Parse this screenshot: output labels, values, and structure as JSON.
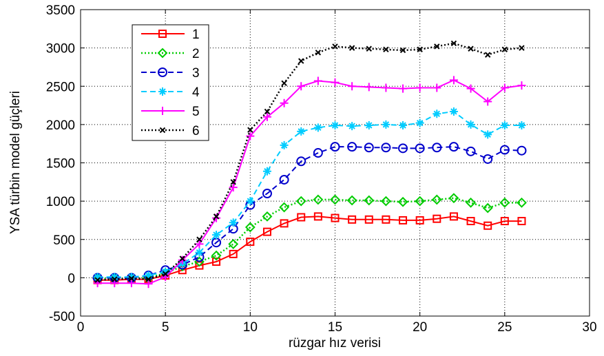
{
  "chart_data": {
    "type": "line",
    "title": "",
    "xlabel": "rüzgar hız verisi",
    "ylabel": "YSA türbin model güçleri",
    "xlim": [
      0,
      30
    ],
    "ylim": [
      -500,
      3500
    ],
    "xticks": [
      0,
      5,
      10,
      15,
      20,
      25,
      30
    ],
    "yticks": [
      -500,
      0,
      500,
      1000,
      1500,
      2000,
      2500,
      3000,
      3500
    ],
    "xtick_labels": [
      "0",
      "5",
      "10",
      "15",
      "20",
      "25",
      "30"
    ],
    "ytick_labels": [
      "-500",
      "0",
      "500",
      "1000",
      "1500",
      "2000",
      "2500",
      "3000",
      "3500"
    ],
    "grid": "dotted",
    "legend_position": "top-left",
    "x": [
      1,
      2,
      3,
      4,
      5,
      6,
      7,
      8,
      9,
      10,
      11,
      12,
      13,
      14,
      15,
      16,
      17,
      18,
      19,
      20,
      21,
      22,
      23,
      24,
      25,
      26
    ],
    "series": [
      {
        "name": "1",
        "color": "#ff0000",
        "line": "solid",
        "marker": "square",
        "values": [
          -30,
          -30,
          -20,
          -20,
          30,
          100,
          160,
          210,
          310,
          470,
          600,
          710,
          790,
          800,
          780,
          760,
          760,
          760,
          750,
          750,
          770,
          800,
          740,
          680,
          740,
          740
        ]
      },
      {
        "name": "2",
        "color": "#00cc00",
        "line": "dotted",
        "marker": "diamond",
        "values": [
          -10,
          -10,
          -10,
          0,
          60,
          150,
          210,
          290,
          440,
          660,
          800,
          920,
          1000,
          1020,
          1020,
          1010,
          1010,
          1000,
          990,
          1000,
          1020,
          1040,
          980,
          910,
          980,
          980
        ]
      },
      {
        "name": "3",
        "color": "#0000cc",
        "line": "dashed",
        "marker": "circle",
        "values": [
          0,
          0,
          0,
          30,
          100,
          170,
          270,
          460,
          640,
          950,
          1100,
          1280,
          1520,
          1630,
          1710,
          1710,
          1700,
          1700,
          1690,
          1690,
          1700,
          1710,
          1650,
          1550,
          1670,
          1660
        ]
      },
      {
        "name": "4",
        "color": "#00ccff",
        "line": "dashed",
        "marker": "star",
        "values": [
          10,
          10,
          10,
          30,
          80,
          180,
          330,
          560,
          720,
          1000,
          1390,
          1730,
          1910,
          1960,
          1990,
          1980,
          1990,
          2000,
          1990,
          2020,
          2140,
          2170,
          2000,
          1870,
          1990,
          1990
        ]
      },
      {
        "name": "5",
        "color": "#ff00ff",
        "line": "solid",
        "marker": "plus",
        "values": [
          -70,
          -70,
          -70,
          -80,
          10,
          230,
          440,
          780,
          1180,
          1850,
          2100,
          2280,
          2500,
          2570,
          2550,
          2500,
          2490,
          2480,
          2470,
          2480,
          2480,
          2580,
          2470,
          2300,
          2480,
          2510
        ]
      },
      {
        "name": "6",
        "color": "#000000",
        "line": "dotted",
        "marker": "x",
        "values": [
          -30,
          -20,
          -10,
          -20,
          50,
          250,
          500,
          800,
          1250,
          1930,
          2170,
          2540,
          2830,
          2940,
          3020,
          3000,
          2990,
          2980,
          2970,
          2980,
          3020,
          3060,
          2990,
          2910,
          2980,
          3000
        ]
      }
    ]
  }
}
